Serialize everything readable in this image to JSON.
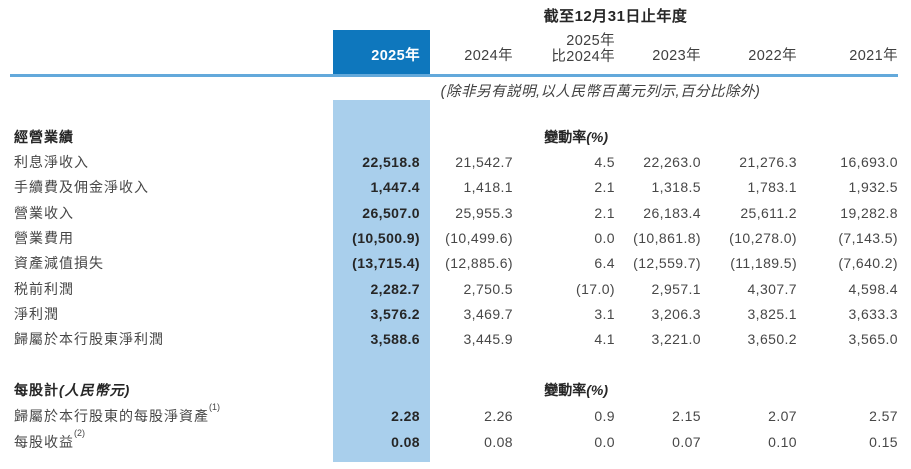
{
  "colors": {
    "accent_blue": "#0E77BD",
    "light_blue": "#A9CFEC",
    "rule_blue": "#63A9DB"
  },
  "header": {
    "title": "截至12月31日止年度",
    "note": "(除非另有説明,以人民幣百萬元列示,百分比除外)"
  },
  "columns": {
    "y2025": "2025年",
    "y2024": "2024年",
    "change_line1": "2025年",
    "change_line2": "比2024年",
    "y2023": "2023年",
    "y2022": "2022年",
    "y2021": "2021年"
  },
  "change_header": {
    "label": "變動率",
    "pct": "(%)"
  },
  "sections": [
    {
      "header": "經營業績",
      "rows": [
        {
          "label": "利息淨收入",
          "v2025": "22,518.8",
          "v2024": "21,542.7",
          "change": "4.5",
          "v2023": "22,263.0",
          "v2022": "21,276.3",
          "v2021": "16,693.0"
        },
        {
          "label": "手續費及佣金淨收入",
          "v2025": "1,447.4",
          "v2024": "1,418.1",
          "change": "2.1",
          "v2023": "1,318.5",
          "v2022": "1,783.1",
          "v2021": "1,932.5"
        },
        {
          "label": "營業收入",
          "v2025": "26,507.0",
          "v2024": "25,955.3",
          "change": "2.1",
          "v2023": "26,183.4",
          "v2022": "25,611.2",
          "v2021": "19,282.8"
        },
        {
          "label": "營業費用",
          "v2025": "(10,500.9)",
          "v2024": "(10,499.6)",
          "change": "0.0",
          "v2023": "(10,861.8)",
          "v2022": "(10,278.0)",
          "v2021": "(7,143.5)"
        },
        {
          "label": "資產減值損失",
          "v2025": "(13,715.4)",
          "v2024": "(12,885.6)",
          "change": "6.4",
          "v2023": "(12,559.7)",
          "v2022": "(11,189.5)",
          "v2021": "(7,640.2)"
        },
        {
          "label": "税前利潤",
          "v2025": "2,282.7",
          "v2024": "2,750.5",
          "change": "(17.0)",
          "v2023": "2,957.1",
          "v2022": "4,307.7",
          "v2021": "4,598.4"
        },
        {
          "label": "淨利潤",
          "v2025": "3,576.2",
          "v2024": "3,469.7",
          "change": "3.1",
          "v2023": "3,206.3",
          "v2022": "3,825.1",
          "v2021": "3,633.3"
        },
        {
          "label": "歸屬於本行股東淨利潤",
          "v2025": "3,588.6",
          "v2024": "3,445.9",
          "change": "4.1",
          "v2023": "3,221.0",
          "v2022": "3,650.2",
          "v2021": "3,565.0"
        }
      ]
    },
    {
      "header": "每股計",
      "header_suffix": "(人民幣元)",
      "rows": [
        {
          "label": "歸屬於本行股東的每股淨資產",
          "sup": "(1)",
          "v2025": "2.28",
          "v2024": "2.26",
          "change": "0.9",
          "v2023": "2.15",
          "v2022": "2.07",
          "v2021": "2.57"
        },
        {
          "label": "每股收益",
          "sup": "(2)",
          "v2025": "0.08",
          "v2024": "0.08",
          "change": "0.0",
          "v2023": "0.07",
          "v2022": "0.10",
          "v2021": "0.15"
        }
      ]
    }
  ]
}
